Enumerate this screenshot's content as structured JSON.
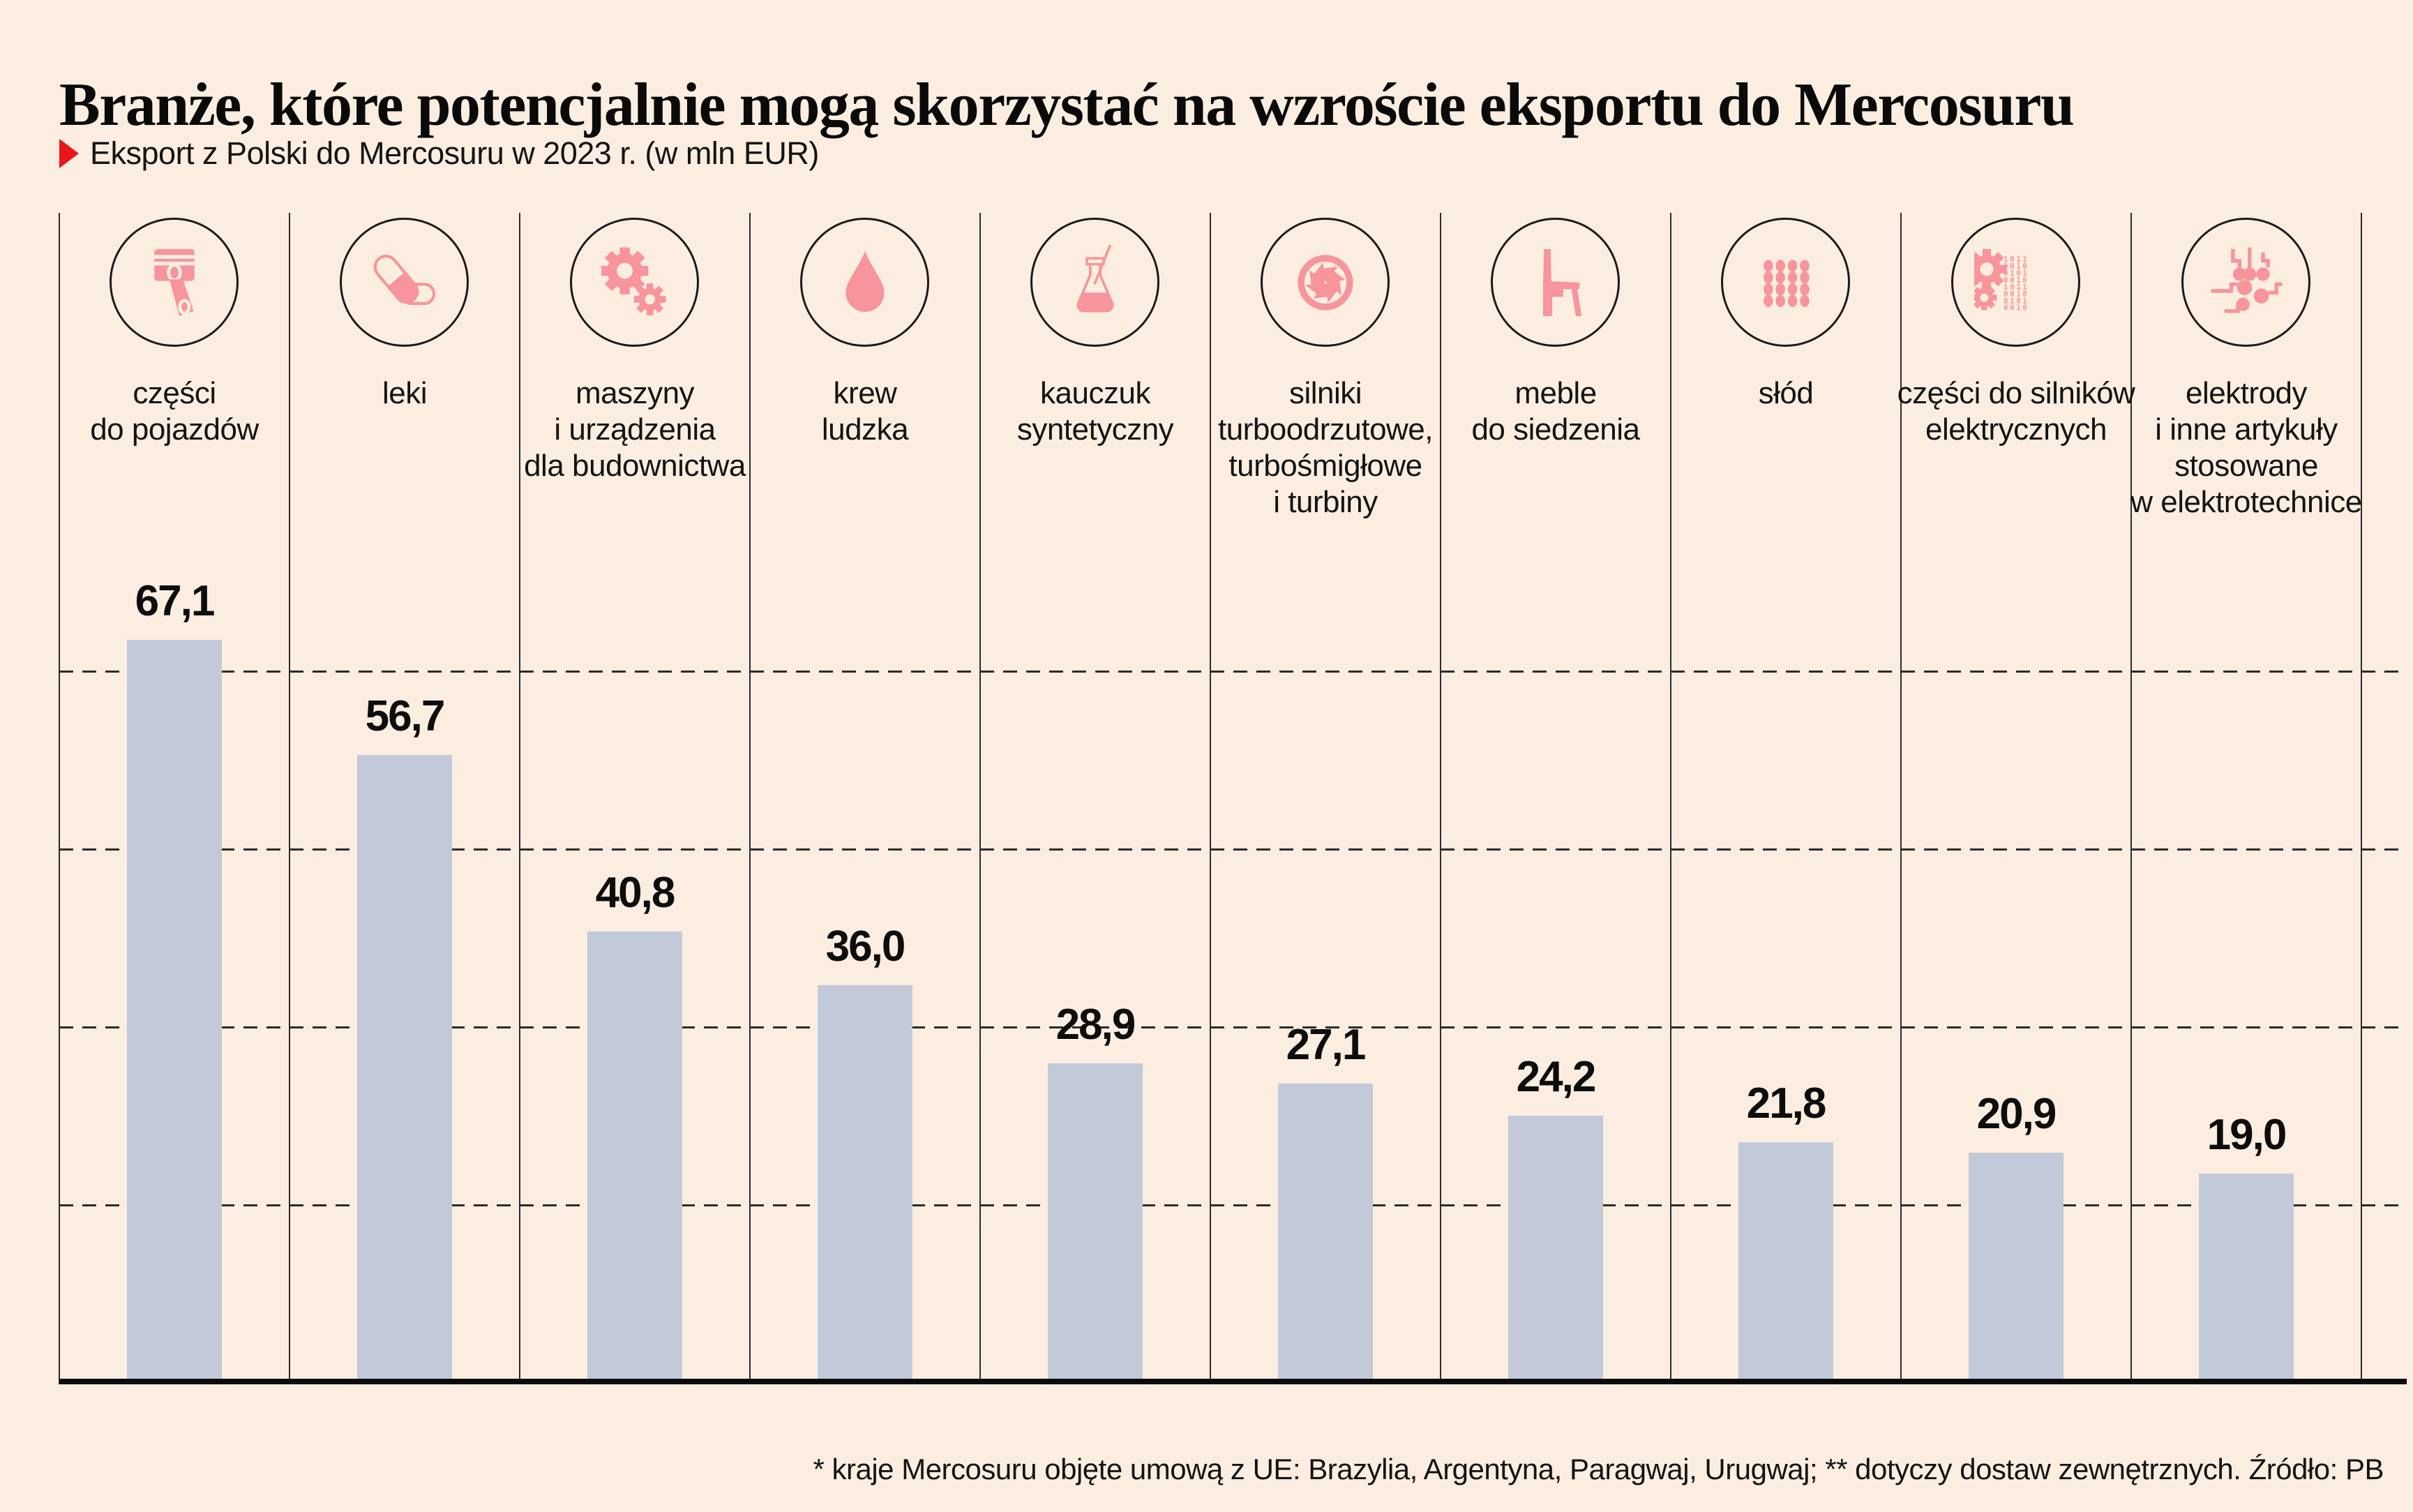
{
  "header": {
    "title": "Branże, które potencjalnie mogą skorzystać na wzroście eksportu do Mercosuru",
    "subtitle": "Eksport z Polski do Mercosuru w 2023 r. (w mln EUR)"
  },
  "footer": {
    "note": "* kraje Mercosuru objęte umową z UE: Brazylia, Argentyna, Paragwaj, Urugwaj; ** dotyczy dostaw zewnętrznych. Źródło: PB"
  },
  "colors": {
    "background": "#fbeee1",
    "bar": "#c2c9d8",
    "icon_pink": "#f7949c",
    "line": "#2b2b2b",
    "accent_red": "#e9161c",
    "text": "#141414"
  },
  "icon_details": {
    "gear_binary_rows": [
      "1011",
      "0010",
      "0101",
      "0010",
      "1011",
      "0010",
      "0101",
      "0010"
    ]
  },
  "chart_data": {
    "type": "bar",
    "title": "Branże, które potencjalnie mogą skorzystać na wzroście eksportu do Mercosuru",
    "subtitle": "Eksport z Polski do Mercosuru w 2023 r. (w mln EUR)",
    "unit": "mln EUR",
    "year": "2023",
    "categories": [
      [
        "części",
        "do pojazdów"
      ],
      [
        "leki"
      ],
      [
        "maszyny",
        "i urządzenia",
        "dla budownictwa"
      ],
      [
        "krew",
        "ludzka"
      ],
      [
        "kauczuk",
        "syntetyczny"
      ],
      [
        "silniki",
        "turboodrzutowe,",
        "turbośmigłowe",
        "i turbiny"
      ],
      [
        "meble",
        "do siedzenia"
      ],
      [
        "słód"
      ],
      [
        "części do silników",
        "elektrycznych"
      ],
      [
        "elektrody",
        "i inne artykuły",
        "stosowane",
        "w elektrotechnice"
      ]
    ],
    "values": [
      67.1,
      56.7,
      40.8,
      36.0,
      28.9,
      27.1,
      24.2,
      21.8,
      20.9,
      19.0
    ],
    "value_labels": [
      "67,1",
      "56,7",
      "40,8",
      "36,0",
      "28,9",
      "27,1",
      "24,2",
      "21,8",
      "20,9",
      "19,0"
    ],
    "icons": [
      "piston-icon",
      "pills-icon",
      "gears-icon",
      "blood-drop-icon",
      "lab-flask-icon",
      "turbine-icon",
      "chair-icon",
      "malt-grains-icon",
      "gear-binary-icon",
      "electrodes-icon"
    ],
    "ylim": [
      0,
      70
    ],
    "grid": "horizontal-dashed",
    "legend": null,
    "source": "PB"
  }
}
